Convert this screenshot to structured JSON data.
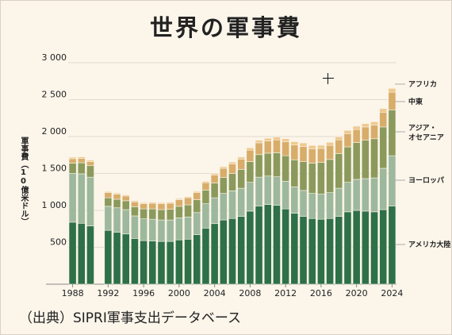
{
  "title": "世界の軍事費",
  "y_axis_label": "軍事費（10億米ドル）",
  "source": "（出典）SIPRI軍事支出データベース",
  "colors": {
    "background": "#fbf5ea",
    "america": "#2e7047",
    "europe": "#9db89c",
    "asia_oceania": "#8b9a5c",
    "middle_east": "#d8ad6a",
    "africa": "#efc98e"
  },
  "chart_data": {
    "type": "bar",
    "stacked": true,
    "title": "世界の軍事費",
    "ylabel": "軍事費（10億米ドル）",
    "ylim": [
      0,
      3000
    ],
    "yticks": [
      500,
      1000,
      1500,
      2000,
      2500,
      3000
    ],
    "ytick_labels": [
      "500",
      "1 000",
      "1 500",
      "2 000",
      "2 500",
      "3 000"
    ],
    "xticks": [
      1988,
      1992,
      1996,
      2000,
      2004,
      2008,
      2012,
      2016,
      2020,
      2024
    ],
    "grid": true,
    "legend_placement": "right",
    "categories": [
      1988,
      1989,
      1990,
      1991,
      1992,
      1993,
      1994,
      1995,
      1996,
      1997,
      1998,
      1999,
      2000,
      2001,
      2002,
      2003,
      2004,
      2005,
      2006,
      2007,
      2008,
      2009,
      2010,
      2011,
      2012,
      2013,
      2014,
      2015,
      2016,
      2017,
      2018,
      2019,
      2020,
      2021,
      2022,
      2023,
      2024
    ],
    "series": [
      {
        "name": "アメリカ大陸",
        "values": [
          840,
          825,
          790,
          null,
          730,
          705,
          680,
          620,
          590,
          585,
          580,
          580,
          600,
          610,
          670,
          760,
          820,
          870,
          890,
          920,
          990,
          1060,
          1080,
          1070,
          1020,
          960,
          920,
          890,
          880,
          890,
          920,
          980,
          1000,
          990,
          980,
          1010,
          1060
        ]
      },
      {
        "name": "ヨーロッパ",
        "values": [
          660,
          670,
          660,
          null,
          325,
          330,
          330,
          305,
          295,
          295,
          290,
          290,
          300,
          300,
          300,
          330,
          350,
          360,
          375,
          380,
          390,
          390,
          385,
          385,
          375,
          360,
          350,
          340,
          340,
          350,
          380,
          400,
          420,
          440,
          460,
          560,
          680
        ]
      },
      {
        "name": "アジア・オセアニア",
        "values": [
          140,
          150,
          155,
          null,
          115,
          115,
          120,
          125,
          135,
          140,
          140,
          145,
          155,
          165,
          175,
          185,
          200,
          215,
          235,
          255,
          280,
          305,
          310,
          325,
          345,
          365,
          390,
          410,
          430,
          450,
          470,
          480,
          500,
          520,
          530,
          560,
          620
        ]
      },
      {
        "name": "中東",
        "values": [
          60,
          60,
          55,
          null,
          70,
          70,
          65,
          65,
          70,
          75,
          80,
          80,
          90,
          95,
          95,
          100,
          110,
          125,
          130,
          140,
          155,
          160,
          165,
          175,
          190,
          200,
          205,
          195,
          190,
          190,
          185,
          180,
          175,
          180,
          185,
          200,
          240
        ]
      },
      {
        "name": "アフリカ",
        "values": [
          20,
          20,
          20,
          null,
          15,
          15,
          15,
          15,
          15,
          15,
          15,
          15,
          15,
          15,
          17,
          18,
          20,
          22,
          25,
          27,
          32,
          35,
          37,
          38,
          40,
          45,
          48,
          44,
          42,
          42,
          42,
          43,
          45,
          45,
          45,
          48,
          52
        ]
      }
    ],
    "legend_labels": [
      "アフリカ",
      "中東",
      "アジア・オセアニア",
      "ヨーロッパ",
      "アメリカ大陸"
    ]
  }
}
